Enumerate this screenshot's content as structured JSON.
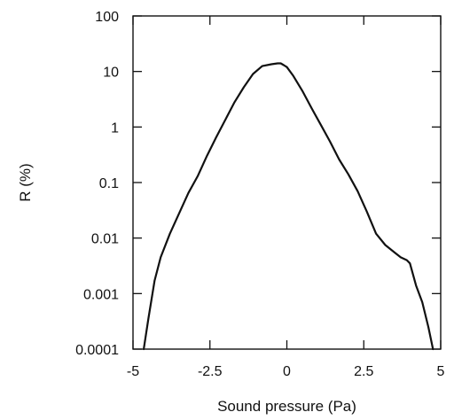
{
  "chart_data": {
    "type": "line",
    "title": "",
    "xlabel": "Sound pressure (Pa)",
    "ylabel": "R (%)",
    "xlim": [
      -5,
      5
    ],
    "ylim": [
      0.0001,
      100
    ],
    "yscale": "log",
    "grid": false,
    "line_color": "#111111",
    "xticks": [
      {
        "value": -5,
        "label": "-5"
      },
      {
        "value": -2.5,
        "label": "-2.5"
      },
      {
        "value": 0,
        "label": "0"
      },
      {
        "value": 2.5,
        "label": "2.5"
      },
      {
        "value": 5,
        "label": "5"
      }
    ],
    "yticks": [
      {
        "value": 0.0001,
        "label": "0.0001"
      },
      {
        "value": 0.001,
        "label": "0.001"
      },
      {
        "value": 0.01,
        "label": "0.01"
      },
      {
        "value": 0.1,
        "label": "0.1"
      },
      {
        "value": 1,
        "label": "1"
      },
      {
        "value": 10,
        "label": "10"
      },
      {
        "value": 100,
        "label": "100"
      }
    ],
    "series": [
      {
        "x": [
          -4.65,
          -4.5,
          -4.3,
          -4.1,
          -3.8,
          -3.5,
          -3.2,
          -2.9,
          -2.6,
          -2.3,
          -2.0,
          -1.7,
          -1.4,
          -1.1,
          -0.8,
          -0.5,
          -0.3,
          -0.2,
          -0.1,
          0.0,
          0.2,
          0.5,
          0.8,
          1.1,
          1.4,
          1.7,
          2.0,
          2.3,
          2.6,
          2.9,
          3.2,
          3.5,
          3.7,
          3.9,
          4.0,
          4.2,
          4.4,
          4.6,
          4.75
        ],
        "y": [
          0.0001,
          0.00035,
          0.0017,
          0.0045,
          0.012,
          0.028,
          0.065,
          0.13,
          0.3,
          0.65,
          1.35,
          2.8,
          5.2,
          9.0,
          12.5,
          13.5,
          14.0,
          14.0,
          13.0,
          12.0,
          8.5,
          4.5,
          2.2,
          1.1,
          0.55,
          0.26,
          0.14,
          0.07,
          0.03,
          0.012,
          0.0075,
          0.0055,
          0.0045,
          0.004,
          0.0035,
          0.0014,
          0.0007,
          0.00025,
          0.0001
        ]
      }
    ]
  }
}
